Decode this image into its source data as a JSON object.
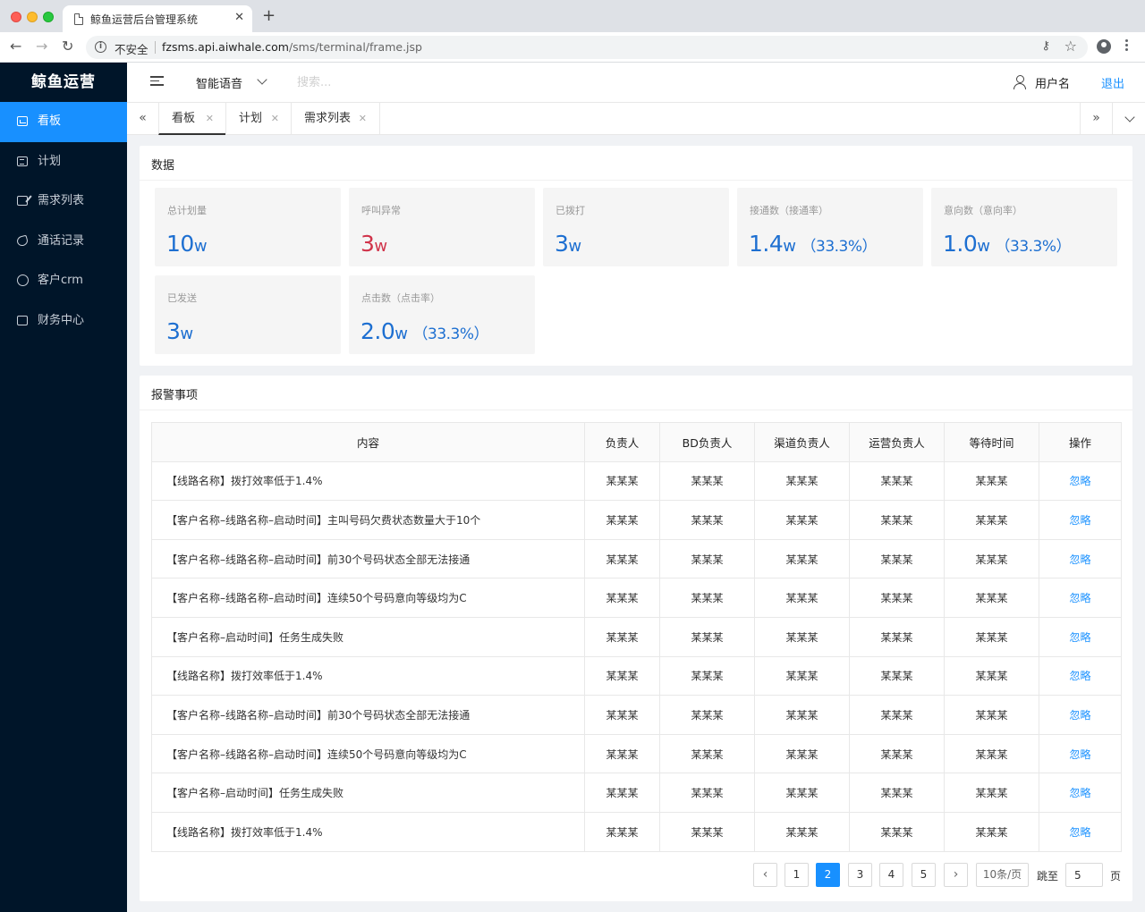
{
  "browser": {
    "tab_title": "鲸鱼运营后台管理系统",
    "insecure_label": "不安全",
    "url_host": "fzsms.api.aiwhale.com",
    "url_path": "/sms/terminal/frame.jsp"
  },
  "sidebar": {
    "logo": "鲸鱼运营",
    "items": [
      {
        "label": "看板",
        "icon": "dashboard-icon",
        "active": true
      },
      {
        "label": "计划",
        "icon": "plan-icon"
      },
      {
        "label": "需求列表",
        "icon": "requirement-icon"
      },
      {
        "label": "通话记录",
        "icon": "phone-icon"
      },
      {
        "label": "客户crm",
        "icon": "crm-icon"
      },
      {
        "label": "财务中心",
        "icon": "finance-icon"
      }
    ]
  },
  "header": {
    "product": "智能语音",
    "search_placeholder": "搜索...",
    "user": "用户名",
    "logout": "退出"
  },
  "page_tabs": [
    {
      "label": "看板",
      "active": true
    },
    {
      "label": "计划"
    },
    {
      "label": "需求列表"
    }
  ],
  "stats": {
    "title": "数据",
    "cards": [
      {
        "label": "总计划量",
        "value": "10",
        "unit": "w",
        "rate": "",
        "color": "#1d6fd1"
      },
      {
        "label": "呼叫异常",
        "value": "3",
        "unit": "w",
        "rate": "",
        "color": "#d0334a"
      },
      {
        "label": "已拨打",
        "value": "3",
        "unit": "w",
        "rate": "",
        "color": "#1d6fd1"
      },
      {
        "label": "接通数（接通率）",
        "value": "1.4",
        "unit": "w",
        "rate": "（33.3%）",
        "color": "#1d6fd1"
      },
      {
        "label": "意向数（意向率）",
        "value": "1.0",
        "unit": "w",
        "rate": "（33.3%）",
        "color": "#1d6fd1"
      },
      {
        "label": "已发送",
        "value": "3",
        "unit": "w",
        "rate": "",
        "color": "#1d6fd1"
      },
      {
        "label": "点击数（点击率）",
        "value": "2.0",
        "unit": "w",
        "rate": "（33.3%）",
        "color": "#1d6fd1"
      }
    ]
  },
  "alerts": {
    "title": "报警事项",
    "columns": [
      "内容",
      "负责人",
      "BD负责人",
      "渠道负责人",
      "运营负责人",
      "等待时间",
      "操作"
    ],
    "rows": [
      {
        "content": "【线路名称】拨打效率低于1.4%",
        "owner": "某某某",
        "bd": "某某某",
        "channel": "某某某",
        "ops": "某某某",
        "wait": "某某某",
        "action": "忽略"
      },
      {
        "content": "【客户名称–线路名称–启动时间】主叫号码欠费状态数量大于10个",
        "owner": "某某某",
        "bd": "某某某",
        "channel": "某某某",
        "ops": "某某某",
        "wait": "某某某",
        "action": "忽略"
      },
      {
        "content": "【客户名称–线路名称–启动时间】前30个号码状态全部无法接通",
        "owner": "某某某",
        "bd": "某某某",
        "channel": "某某某",
        "ops": "某某某",
        "wait": "某某某",
        "action": "忽略"
      },
      {
        "content": "【客户名称–线路名称–启动时间】连续50个号码意向等级均为C",
        "owner": "某某某",
        "bd": "某某某",
        "channel": "某某某",
        "ops": "某某某",
        "wait": "某某某",
        "action": "忽略"
      },
      {
        "content": "【客户名称–启动时间】任务生成失败",
        "owner": "某某某",
        "bd": "某某某",
        "channel": "某某某",
        "ops": "某某某",
        "wait": "某某某",
        "action": "忽略"
      },
      {
        "content": "【线路名称】拨打效率低于1.4%",
        "owner": "某某某",
        "bd": "某某某",
        "channel": "某某某",
        "ops": "某某某",
        "wait": "某某某",
        "action": "忽略"
      },
      {
        "content": "【客户名称–线路名称–启动时间】前30个号码状态全部无法接通",
        "owner": "某某某",
        "bd": "某某某",
        "channel": "某某某",
        "ops": "某某某",
        "wait": "某某某",
        "action": "忽略"
      },
      {
        "content": "【客户名称–线路名称–启动时间】连续50个号码意向等级均为C",
        "owner": "某某某",
        "bd": "某某某",
        "channel": "某某某",
        "ops": "某某某",
        "wait": "某某某",
        "action": "忽略"
      },
      {
        "content": "【客户名称–启动时间】任务生成失败",
        "owner": "某某某",
        "bd": "某某某",
        "channel": "某某某",
        "ops": "某某某",
        "wait": "某某某",
        "action": "忽略"
      },
      {
        "content": "【线路名称】拨打效率低于1.4%",
        "owner": "某某某",
        "bd": "某某某",
        "channel": "某某某",
        "ops": "某某某",
        "wait": "某某某",
        "action": "忽略"
      }
    ]
  },
  "pagination": {
    "pages": [
      "1",
      "2",
      "3",
      "4",
      "5"
    ],
    "current": "2",
    "page_size": "10条/页",
    "jump_label": "跳至",
    "jump_value": "5",
    "page_suffix": "页"
  }
}
